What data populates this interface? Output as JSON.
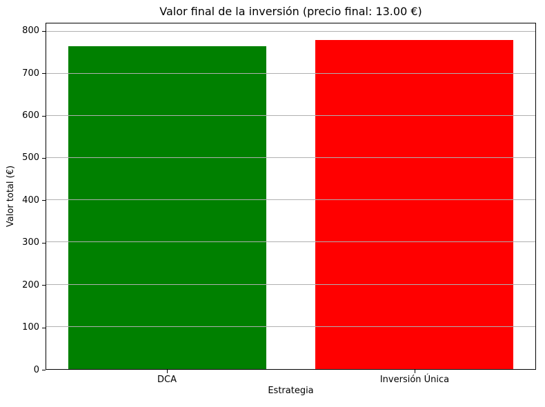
{
  "chart_data": {
    "type": "bar",
    "title": "Valor final de la inversión (precio final: 13.00 €)",
    "xlabel": "Estrategia",
    "ylabel": "Valor total (€)",
    "categories": [
      "DCA",
      "Inversión Única"
    ],
    "values": [
      765,
      780
    ],
    "colors": [
      "#008000",
      "#ff0000"
    ],
    "ylim": [
      0,
      819
    ],
    "yticks": [
      0,
      100,
      200,
      300,
      400,
      500,
      600,
      700,
      800
    ],
    "grid": "horizontal-over-bars",
    "grid_color": "#b0b0b0",
    "legend": false,
    "background_color": "#ffffff",
    "bar_width_fraction": 0.8
  }
}
